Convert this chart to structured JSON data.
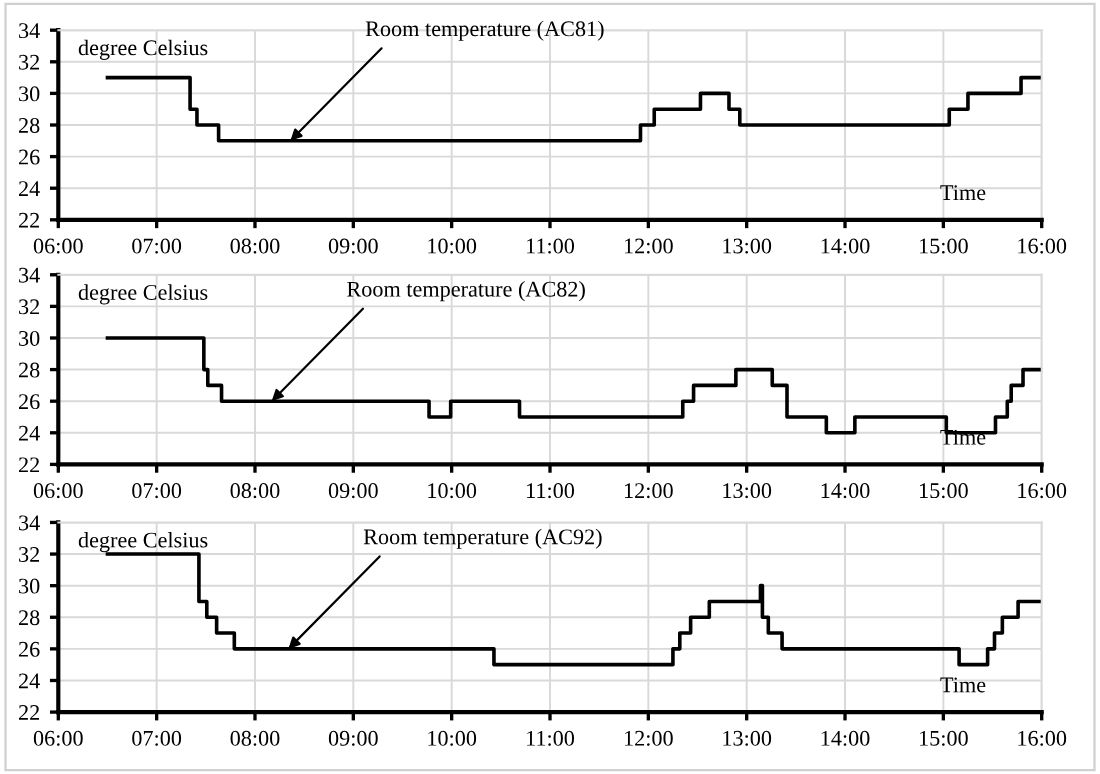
{
  "chart_data": [
    {
      "type": "step",
      "ylabel": "degree Celsius",
      "xlabel": "Time",
      "xlim": [
        6,
        16
      ],
      "ylim": [
        22,
        34
      ],
      "xticks": [
        {
          "value": 6,
          "label": "06:00"
        },
        {
          "value": 7,
          "label": "07:00"
        },
        {
          "value": 8,
          "label": "08:00"
        },
        {
          "value": 9,
          "label": "09:00"
        },
        {
          "value": 10,
          "label": "10:00"
        },
        {
          "value": 11,
          "label": "11:00"
        },
        {
          "value": 12,
          "label": "12:00"
        },
        {
          "value": 13,
          "label": "13:00"
        },
        {
          "value": 14,
          "label": "14:00"
        },
        {
          "value": 15,
          "label": "15:00"
        },
        {
          "value": 16,
          "label": "16:00"
        }
      ],
      "yticks": [
        22,
        24,
        26,
        28,
        30,
        32,
        34
      ],
      "grid": true,
      "marker": "none",
      "line_style": "solid",
      "annotations": [
        {
          "text": "Room temperature (AC81)",
          "x": 8.36,
          "y": 27
        }
      ],
      "series": [
        {
          "color": "#000000",
          "x": [
            6.5,
            7.34,
            7.41,
            7.63,
            11.92,
            12.06,
            12.53,
            12.82,
            12.93,
            15.06,
            15.25,
            15.79,
            16.0
          ],
          "values": [
            31,
            29,
            28,
            27,
            28,
            29,
            30,
            29,
            28,
            29,
            30,
            31,
            31
          ]
        }
      ]
    },
    {
      "type": "step",
      "ylabel": "degree Celsius",
      "xlabel": "Time",
      "xlim": [
        6,
        16
      ],
      "ylim": [
        22,
        34
      ],
      "xticks": [
        {
          "value": 6,
          "label": "06:00"
        },
        {
          "value": 7,
          "label": "07:00"
        },
        {
          "value": 8,
          "label": "08:00"
        },
        {
          "value": 9,
          "label": "09:00"
        },
        {
          "value": 10,
          "label": "10:00"
        },
        {
          "value": 11,
          "label": "11:00"
        },
        {
          "value": 12,
          "label": "12:00"
        },
        {
          "value": 13,
          "label": "13:00"
        },
        {
          "value": 14,
          "label": "14:00"
        },
        {
          "value": 15,
          "label": "15:00"
        },
        {
          "value": 16,
          "label": "16:00"
        }
      ],
      "yticks": [
        22,
        24,
        26,
        28,
        30,
        32,
        34
      ],
      "grid": true,
      "marker": "none",
      "line_style": "solid",
      "annotations": [
        {
          "text": "Room temperature (AC82)",
          "x": 8.17,
          "y": 26
        }
      ],
      "series": [
        {
          "color": "#000000",
          "x": [
            6.5,
            7.48,
            7.52,
            7.66,
            9.77,
            9.99,
            10.69,
            12.35,
            12.46,
            12.89,
            13.26,
            13.41,
            13.81,
            14.1,
            15.03,
            15.53,
            15.65,
            15.69,
            15.81,
            16.0
          ],
          "values": [
            30,
            28,
            27,
            26,
            25,
            26,
            25,
            26,
            27,
            28,
            27,
            25,
            24,
            25,
            24,
            25,
            26,
            27,
            28,
            28
          ]
        }
      ]
    },
    {
      "type": "step",
      "ylabel": "degree Celsius",
      "xlabel": "Time",
      "xlim": [
        6,
        16
      ],
      "ylim": [
        22,
        34
      ],
      "xticks": [
        {
          "value": 6,
          "label": "06:00"
        },
        {
          "value": 7,
          "label": "07:00"
        },
        {
          "value": 8,
          "label": "08:00"
        },
        {
          "value": 9,
          "label": "09:00"
        },
        {
          "value": 10,
          "label": "10:00"
        },
        {
          "value": 11,
          "label": "11:00"
        },
        {
          "value": 12,
          "label": "12:00"
        },
        {
          "value": 13,
          "label": "13:00"
        },
        {
          "value": 14,
          "label": "14:00"
        },
        {
          "value": 15,
          "label": "15:00"
        },
        {
          "value": 16,
          "label": "16:00"
        }
      ],
      "yticks": [
        22,
        24,
        26,
        28,
        30,
        32,
        34
      ],
      "grid": true,
      "marker": "none",
      "line_style": "solid",
      "annotations": [
        {
          "text": "Room temperature (AC92)",
          "x": 8.34,
          "y": 26
        }
      ],
      "series": [
        {
          "color": "#000000",
          "x": [
            6.5,
            7.43,
            7.51,
            7.61,
            7.79,
            10.43,
            12.25,
            12.32,
            12.43,
            12.62,
            13.14,
            13.16,
            13.22,
            13.36,
            15.16,
            15.45,
            15.52,
            15.6,
            15.76,
            16.0
          ],
          "values": [
            32,
            29,
            28,
            27,
            26,
            25,
            26,
            27,
            28,
            29,
            30,
            28,
            27,
            26,
            25,
            26,
            27,
            28,
            29,
            29
          ]
        }
      ]
    }
  ]
}
